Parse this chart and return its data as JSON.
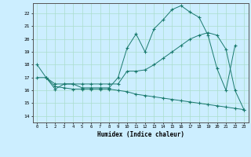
{
  "line1_x": [
    0,
    1,
    2,
    3,
    4,
    5,
    6,
    7,
    8,
    9,
    10,
    11,
    12,
    13,
    14,
    15,
    16,
    17,
    18,
    19,
    20,
    21,
    22
  ],
  "line1_y": [
    18,
    17,
    16.1,
    16.5,
    16.5,
    16.2,
    16.2,
    16.2,
    16.2,
    17.0,
    19.3,
    20.4,
    19.0,
    20.8,
    21.5,
    22.3,
    22.6,
    22.1,
    21.7,
    20.3,
    17.7,
    16.0,
    19.5
  ],
  "line2_x": [
    0,
    1,
    2,
    3,
    4,
    5,
    6,
    7,
    8,
    9,
    10,
    11,
    12,
    13,
    14,
    15,
    16,
    17,
    18,
    19,
    20,
    21,
    22,
    23
  ],
  "line2_y": [
    17.0,
    17.0,
    16.5,
    16.5,
    16.5,
    16.5,
    16.5,
    16.5,
    16.5,
    16.5,
    17.5,
    17.5,
    17.6,
    18.0,
    18.5,
    19.0,
    19.5,
    20.0,
    20.3,
    20.5,
    20.3,
    19.2,
    16.0,
    14.5
  ],
  "line3_x": [
    1,
    2,
    3,
    4,
    5,
    6,
    7,
    8,
    9,
    10,
    11,
    12,
    13,
    14,
    15,
    16,
    17,
    18,
    19,
    20,
    21,
    22,
    23
  ],
  "line3_y": [
    17.0,
    16.3,
    16.2,
    16.1,
    16.1,
    16.1,
    16.1,
    16.1,
    16.0,
    15.9,
    15.7,
    15.6,
    15.5,
    15.4,
    15.3,
    15.2,
    15.1,
    15.0,
    14.9,
    14.8,
    14.7,
    14.6,
    14.5
  ],
  "color": "#1a7a6e",
  "bg_color": "#cceeff",
  "grid_color": "#aaddcc",
  "xlabel": "Humidex (Indice chaleur)",
  "xlim": [
    -0.5,
    23.5
  ],
  "ylim": [
    13.5,
    22.8
  ],
  "yticks": [
    14,
    15,
    16,
    17,
    18,
    19,
    20,
    21,
    22
  ],
  "xticks": [
    0,
    1,
    2,
    3,
    4,
    5,
    6,
    7,
    8,
    9,
    10,
    11,
    12,
    13,
    14,
    15,
    16,
    17,
    18,
    19,
    20,
    21,
    22,
    23
  ]
}
